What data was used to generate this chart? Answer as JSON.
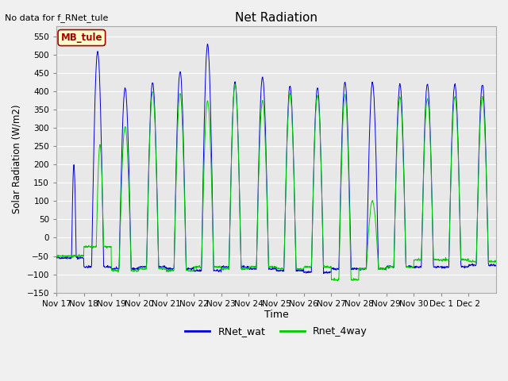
{
  "title": "Net Radiation",
  "xlabel": "Time",
  "ylabel": "Solar Radiation (W/m2)",
  "ylim": [
    -150,
    580
  ],
  "yticks": [
    -150,
    -100,
    -50,
    0,
    50,
    100,
    150,
    200,
    250,
    300,
    350,
    400,
    450,
    500,
    550
  ],
  "blue_color": "#0000dd",
  "green_color": "#00cc00",
  "bg_color": "#e8e8e8",
  "fig_color": "#f0f0f0",
  "grid_color": "#ffffff",
  "annotation_text": "No data for f_RNet_tule",
  "legend_box_text": "MB_tule",
  "legend_box_facecolor": "#ffffcc",
  "legend_box_edgecolor": "#aa0000",
  "legend_label_blue": "RNet_wat",
  "legend_label_green": "Rnet_4way",
  "tick_labels": [
    "Nov 17",
    "Nov 18",
    "Nov 19",
    "Nov 20",
    "Nov 21",
    "Nov 22",
    "Nov 23",
    "Nov 24",
    "Nov 25",
    "Nov 26",
    "Nov 27",
    "Nov 28",
    "Nov 29",
    "Nov 30",
    "Dec 1",
    "Dec 2"
  ],
  "num_days": 16,
  "blue_peaks": [
    200,
    510,
    410,
    425,
    455,
    530,
    425,
    440,
    415,
    410,
    425,
    425,
    420,
    420,
    420,
    420
  ],
  "green_peaks": [
    0,
    255,
    305,
    400,
    395,
    375,
    420,
    375,
    395,
    390,
    390,
    100,
    385,
    380,
    385,
    385
  ],
  "blue_night": [
    -55,
    -80,
    -85,
    -80,
    -85,
    -90,
    -80,
    -85,
    -90,
    -95,
    -85,
    -85,
    -80,
    -80,
    -80,
    -75
  ],
  "green_night": [
    -50,
    -25,
    -90,
    -85,
    -90,
    -80,
    -85,
    -80,
    -85,
    -80,
    -115,
    -85,
    -80,
    -60,
    -60,
    -65
  ],
  "day_start": [
    0.55,
    0.28,
    0.28,
    0.28,
    0.28,
    0.28,
    0.28,
    0.28,
    0.28,
    0.28,
    0.28,
    0.28,
    0.28,
    0.28,
    0.28,
    0.28
  ],
  "day_end": [
    0.72,
    0.72,
    0.72,
    0.72,
    0.72,
    0.72,
    0.72,
    0.72,
    0.72,
    0.72,
    0.72,
    0.72,
    0.72,
    0.72,
    0.72,
    0.72
  ],
  "green_day_start": [
    0.55,
    0.45,
    0.28,
    0.28,
    0.28,
    0.28,
    0.28,
    0.28,
    0.28,
    0.28,
    0.28,
    0.28,
    0.28,
    0.28,
    0.28,
    0.28
  ],
  "green_day_end": [
    0.72,
    0.72,
    0.72,
    0.72,
    0.72,
    0.72,
    0.72,
    0.72,
    0.72,
    0.72,
    0.72,
    0.72,
    0.72,
    0.72,
    0.72,
    0.72
  ]
}
